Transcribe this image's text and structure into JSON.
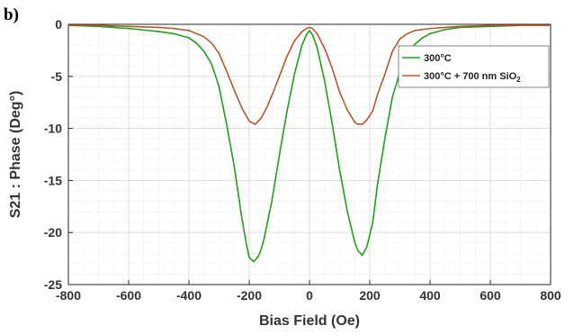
{
  "panel_label": "b)",
  "chart_data": {
    "type": "line",
    "title": "",
    "xlabel": "Bias Field (Oe)",
    "ylabel": "S21  : Phase (Deg°)",
    "xlim": [
      -800,
      800
    ],
    "ylim": [
      -25,
      0
    ],
    "xticks": [
      -800,
      -600,
      -400,
      -200,
      0,
      200,
      400,
      600,
      800
    ],
    "yticks": [
      0,
      -5,
      -10,
      -15,
      -20,
      -25
    ],
    "grid": true,
    "legend_position": "top-right",
    "series": [
      {
        "name": "300°C",
        "color": "#1f9e1f",
        "x": [
          -800,
          -700,
          -600,
          -500,
          -450,
          -400,
          -375,
          -350,
          -325,
          -300,
          -275,
          -250,
          -225,
          -210,
          -200,
          -185,
          -170,
          -160,
          -150,
          -125,
          -100,
          -75,
          -50,
          -25,
          -10,
          0,
          10,
          25,
          50,
          75,
          100,
          125,
          150,
          160,
          175,
          190,
          210,
          225,
          250,
          275,
          300,
          325,
          350,
          375,
          400,
          450,
          500,
          600,
          700,
          800
        ],
        "y": [
          -0.1,
          -0.2,
          -0.4,
          -0.7,
          -0.9,
          -1.3,
          -1.8,
          -2.6,
          -3.8,
          -6.0,
          -9.6,
          -13.6,
          -18.5,
          -21.0,
          -22.4,
          -22.8,
          -22.3,
          -21.6,
          -20.5,
          -17.0,
          -12.6,
          -8.4,
          -4.8,
          -2.0,
          -1.0,
          -0.6,
          -1.0,
          -2.2,
          -5.4,
          -9.5,
          -14.0,
          -17.9,
          -20.9,
          -21.7,
          -22.2,
          -21.4,
          -19.0,
          -15.5,
          -11.0,
          -7.0,
          -4.6,
          -2.9,
          -1.9,
          -1.3,
          -0.9,
          -0.5,
          -0.3,
          -0.2,
          -0.1,
          -0.1
        ]
      },
      {
        "name": "300°C + 700 nm SiO2",
        "color": "#b5562f",
        "x": [
          -800,
          -700,
          -600,
          -500,
          -450,
          -400,
          -350,
          -325,
          -300,
          -275,
          -250,
          -225,
          -200,
          -180,
          -160,
          -140,
          -120,
          -100,
          -75,
          -50,
          -25,
          -10,
          0,
          10,
          25,
          50,
          75,
          100,
          125,
          150,
          160,
          175,
          190,
          210,
          225,
          250,
          275,
          300,
          325,
          350,
          400,
          500,
          600,
          700,
          800
        ],
        "y": [
          -0.1,
          -0.1,
          -0.2,
          -0.3,
          -0.4,
          -0.6,
          -1.2,
          -1.8,
          -2.8,
          -4.5,
          -6.3,
          -8.0,
          -9.3,
          -9.6,
          -9.0,
          -7.9,
          -6.5,
          -5.0,
          -3.1,
          -1.6,
          -0.7,
          -0.4,
          -0.3,
          -0.4,
          -0.9,
          -2.3,
          -4.2,
          -6.5,
          -8.2,
          -9.4,
          -9.6,
          -9.6,
          -9.2,
          -8.3,
          -6.8,
          -4.8,
          -2.6,
          -1.4,
          -0.9,
          -0.6,
          -0.4,
          -0.2,
          -0.1,
          -0.1,
          -0.1
        ]
      }
    ]
  }
}
